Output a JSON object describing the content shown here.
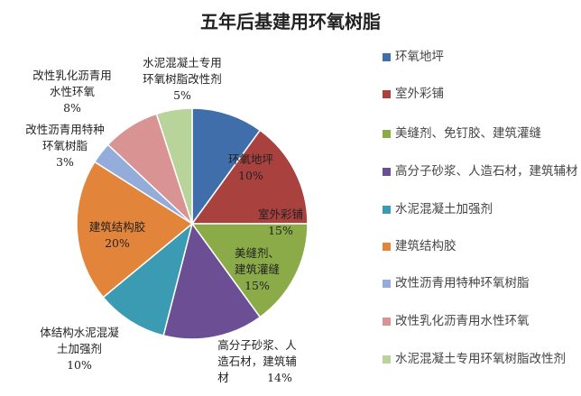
{
  "chart_data": {
    "type": "pie",
    "title": "五年后基建用环氧树脂",
    "legend_position": "right",
    "slices": [
      {
        "legend": "环氧地坪",
        "label": [
          "环氧地坪"
        ],
        "value": 10,
        "value_label": "10%",
        "color": "#3f6eaa"
      },
      {
        "legend": "室外彩铺",
        "label": [
          "室外彩铺"
        ],
        "value": 15,
        "value_label": "15%",
        "color": "#a9413f"
      },
      {
        "legend": "美缝剂、免钉胶、建筑灌缝",
        "label": [
          "美缝剂、",
          "建筑灌缝"
        ],
        "value": 15,
        "value_label": "15%",
        "color": "#8bab49"
      },
      {
        "legend": "高分子砂浆、人造石材，建筑辅材",
        "label": [
          "高分子砂浆、人",
          "造石材，建筑辅",
          "材"
        ],
        "value": 14,
        "value_label": "14%",
        "color": "#6b4e94"
      },
      {
        "legend": "水泥混凝土加强剂",
        "label": [
          "体结构水泥混凝",
          "土加强剂"
        ],
        "value": 10,
        "value_label": "10%",
        "color": "#3a9bb3"
      },
      {
        "legend": "建筑结构胶",
        "label": [
          "建筑结构胶"
        ],
        "value": 20,
        "value_label": "20%",
        "color": "#e2843a"
      },
      {
        "legend": "改性沥青用特种环氧树脂",
        "label": [
          "改性沥青用特种",
          "环氧树脂"
        ],
        "value": 3,
        "value_label": "3%",
        "color": "#93acd9"
      },
      {
        "legend": "改性乳化沥青用水性环氧",
        "label": [
          "改性乳化沥青用",
          "水性环氧"
        ],
        "value": 8,
        "value_label": "8%",
        "color": "#d99393"
      },
      {
        "legend": "水泥混凝土专用环氧树脂改性剂",
        "label": [
          "水泥混凝土专用",
          "环氧树脂改性剂"
        ],
        "value": 5,
        "value_label": "5%",
        "color": "#b8d49a"
      }
    ]
  }
}
